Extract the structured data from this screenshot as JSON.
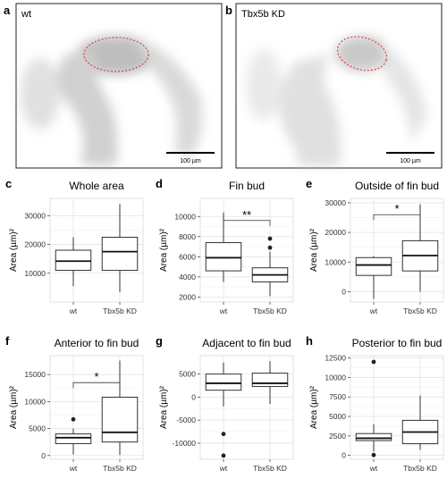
{
  "micro_panels": [
    {
      "letter": "a",
      "label": "wt",
      "scale_label": "100 µm"
    },
    {
      "letter": "b",
      "label": "Tbx5b KD",
      "scale_label": "100 µm"
    }
  ],
  "colors": {
    "box_fill": "#ffffff",
    "box_stroke": "#333333",
    "grid": "#e3e3e3",
    "panel_bg": "#ffffff",
    "outlier": "#222222",
    "dashed_ellipse": "#d94040"
  },
  "chart_data": [
    {
      "letter": "c",
      "title": "Whole area",
      "type": "box",
      "ylabel": "Area (µm)²",
      "ylim": [
        0,
        36000
      ],
      "yticks": [
        10000,
        20000,
        30000
      ],
      "categories": [
        "wt",
        "Tbx5b KD"
      ],
      "boxes": [
        {
          "min": 5500,
          "q1": 11000,
          "median": 14200,
          "q3": 18000,
          "max": 22500,
          "outliers": []
        },
        {
          "min": 3500,
          "q1": 11000,
          "median": 17500,
          "q3": 22500,
          "max": 34000,
          "outliers": []
        }
      ],
      "significance": null
    },
    {
      "letter": "d",
      "title": "Fin bud",
      "type": "box",
      "ylabel": "Area (µm)²",
      "ylim": [
        1500,
        11800
      ],
      "yticks": [
        2000,
        4000,
        6000,
        8000,
        10000
      ],
      "categories": [
        "wt",
        "Tbx5b KD"
      ],
      "boxes": [
        {
          "min": 3500,
          "q1": 4600,
          "median": 5900,
          "q3": 7400,
          "max": 10400,
          "outliers": []
        },
        {
          "min": 2100,
          "q1": 3500,
          "median": 4200,
          "q3": 4900,
          "max": 6500,
          "outliers": [
            6900,
            7800
          ]
        }
      ],
      "significance": {
        "label": "**",
        "bracket_y": 9600
      }
    },
    {
      "letter": "e",
      "title": "Outside of fin bud",
      "type": "box",
      "ylabel": "Area (µm)²",
      "ylim": [
        -3500,
        31500
      ],
      "yticks": [
        0,
        10000,
        20000,
        30000
      ],
      "categories": [
        "wt",
        "Tbx5b KD"
      ],
      "boxes": [
        {
          "min": -2500,
          "q1": 5500,
          "median": 9000,
          "q3": 11500,
          "max": 12000,
          "outliers": []
        },
        {
          "min": 0,
          "q1": 7000,
          "median": 12200,
          "q3": 17200,
          "max": 29500,
          "outliers": []
        }
      ],
      "significance": {
        "label": "*",
        "bracket_y": 26000
      }
    },
    {
      "letter": "f",
      "title": "Anterior to fin bud",
      "type": "box",
      "ylabel": "Area (µm)²",
      "ylim": [
        -700,
        18500
      ],
      "yticks": [
        0,
        5000,
        10000,
        15000
      ],
      "categories": [
        "wt",
        "Tbx5b KD"
      ],
      "boxes": [
        {
          "min": 200,
          "q1": 2200,
          "median": 3300,
          "q3": 4000,
          "max": 5000,
          "outliers": [
            6700
          ]
        },
        {
          "min": 100,
          "q1": 2500,
          "median": 4300,
          "q3": 10800,
          "max": 17600,
          "outliers": []
        }
      ],
      "significance": {
        "label": "*",
        "bracket_y": 13500
      }
    },
    {
      "letter": "g",
      "title": "Adjacent to fin bud",
      "type": "box",
      "ylabel": "Area (µm)²",
      "ylim": [
        -13500,
        9000
      ],
      "yticks": [
        -10000,
        -5000,
        0,
        5000
      ],
      "categories": [
        "wt",
        "Tbx5b KD"
      ],
      "boxes": [
        {
          "min": -2000,
          "q1": 1500,
          "median": 3000,
          "q3": 5000,
          "max": 7500,
          "outliers": [
            -8000,
            -12700
          ]
        },
        {
          "min": -1500,
          "q1": 2300,
          "median": 3000,
          "q3": 5200,
          "max": 7800,
          "outliers": []
        }
      ],
      "significance": null
    },
    {
      "letter": "h",
      "title": "Posterior to fin bud",
      "type": "box",
      "ylabel": "Area (µm)²",
      "ylim": [
        -500,
        12800
      ],
      "yticks": [
        0,
        2500,
        5000,
        7500,
        10000,
        12500
      ],
      "categories": [
        "wt",
        "Tbx5b KD"
      ],
      "boxes": [
        {
          "min": 500,
          "q1": 1900,
          "median": 2200,
          "q3": 2800,
          "max": 4000,
          "outliers": [
            12000,
            50
          ]
        },
        {
          "min": 700,
          "q1": 1500,
          "median": 3000,
          "q3": 4500,
          "max": 7700,
          "outliers": []
        }
      ],
      "significance": null
    }
  ]
}
